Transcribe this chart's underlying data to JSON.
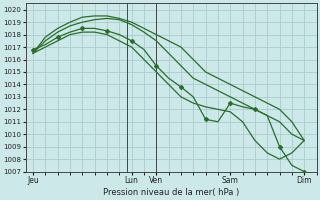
{
  "background_color": "#cce8e8",
  "grid_color": "#aacccc",
  "line_color": "#2a6e2a",
  "marker_color": "#2a6e2a",
  "xlabel": "Pression niveau de la mer( hPa )",
  "ylim": [
    1007,
    1020.5
  ],
  "yticks": [
    1007,
    1008,
    1009,
    1010,
    1011,
    1012,
    1013,
    1014,
    1015,
    1016,
    1017,
    1018,
    1019,
    1020
  ],
  "xtick_labels": [
    "Jeu",
    "Lun",
    "Ven",
    "Sam",
    "Dim"
  ],
  "xtick_positions": [
    0,
    4,
    5,
    8,
    11
  ],
  "xlim": [
    -0.3,
    11.5
  ],
  "vlines": [
    3.8,
    5.0
  ],
  "vline_color": "#444444",
  "series1_x": [
    0,
    0.5,
    1.0,
    1.5,
    2.0,
    2.5,
    3.0,
    3.5,
    4.0,
    4.5,
    5.0,
    5.5,
    6.0,
    6.5,
    7.0,
    7.5,
    8.0,
    8.5,
    9.0,
    9.5,
    10.0,
    10.5,
    11.0
  ],
  "series1_y": [
    1016.5,
    1017.8,
    1018.5,
    1019.0,
    1019.4,
    1019.5,
    1019.5,
    1019.3,
    1019.0,
    1018.5,
    1018.0,
    1017.5,
    1017.0,
    1016.0,
    1015.0,
    1014.5,
    1014.0,
    1013.5,
    1013.0,
    1012.5,
    1012.0,
    1011.0,
    1009.5
  ],
  "series2_x": [
    0,
    0.5,
    1.0,
    1.5,
    2.0,
    2.5,
    3.0,
    3.5,
    4.0,
    4.5,
    5.0,
    5.5,
    6.0,
    6.5,
    7.0,
    7.5,
    8.0,
    8.5,
    9.0,
    9.5,
    10.0,
    10.5,
    11.0
  ],
  "series2_y": [
    1016.5,
    1017.5,
    1018.2,
    1018.7,
    1019.0,
    1019.2,
    1019.3,
    1019.2,
    1018.8,
    1018.2,
    1017.5,
    1016.5,
    1015.5,
    1014.5,
    1014.0,
    1013.5,
    1013.0,
    1012.5,
    1012.0,
    1011.5,
    1011.0,
    1010.0,
    1009.5
  ],
  "series3_x": [
    0,
    0.5,
    1.0,
    1.5,
    2.0,
    2.5,
    3.0,
    3.5,
    4.0,
    4.5,
    5.0,
    5.5,
    6.0,
    6.5,
    7.0,
    7.5,
    8.0,
    8.5,
    9.0,
    9.5,
    10.0,
    10.5,
    11.0
  ],
  "series3_y": [
    1016.8,
    1017.2,
    1017.8,
    1018.2,
    1018.5,
    1018.5,
    1018.3,
    1018.0,
    1017.5,
    1016.8,
    1015.5,
    1014.5,
    1013.8,
    1013.0,
    1011.2,
    1011.0,
    1012.5,
    1012.2,
    1012.0,
    1011.5,
    1009.0,
    1007.5,
    1007.0
  ],
  "series4_x": [
    0,
    0.5,
    1.0,
    1.5,
    2.0,
    2.5,
    3.0,
    3.5,
    4.0,
    4.5,
    5.0,
    5.5,
    6.0,
    6.5,
    7.0,
    7.5,
    8.0,
    8.5,
    9.0,
    9.5,
    10.0,
    10.5,
    11.0
  ],
  "series4_y": [
    1016.5,
    1017.0,
    1017.5,
    1018.0,
    1018.2,
    1018.2,
    1018.0,
    1017.5,
    1017.0,
    1016.0,
    1015.0,
    1014.0,
    1013.0,
    1012.5,
    1012.2,
    1012.0,
    1011.8,
    1011.0,
    1009.5,
    1008.5,
    1008.0,
    1008.5,
    1009.5
  ]
}
